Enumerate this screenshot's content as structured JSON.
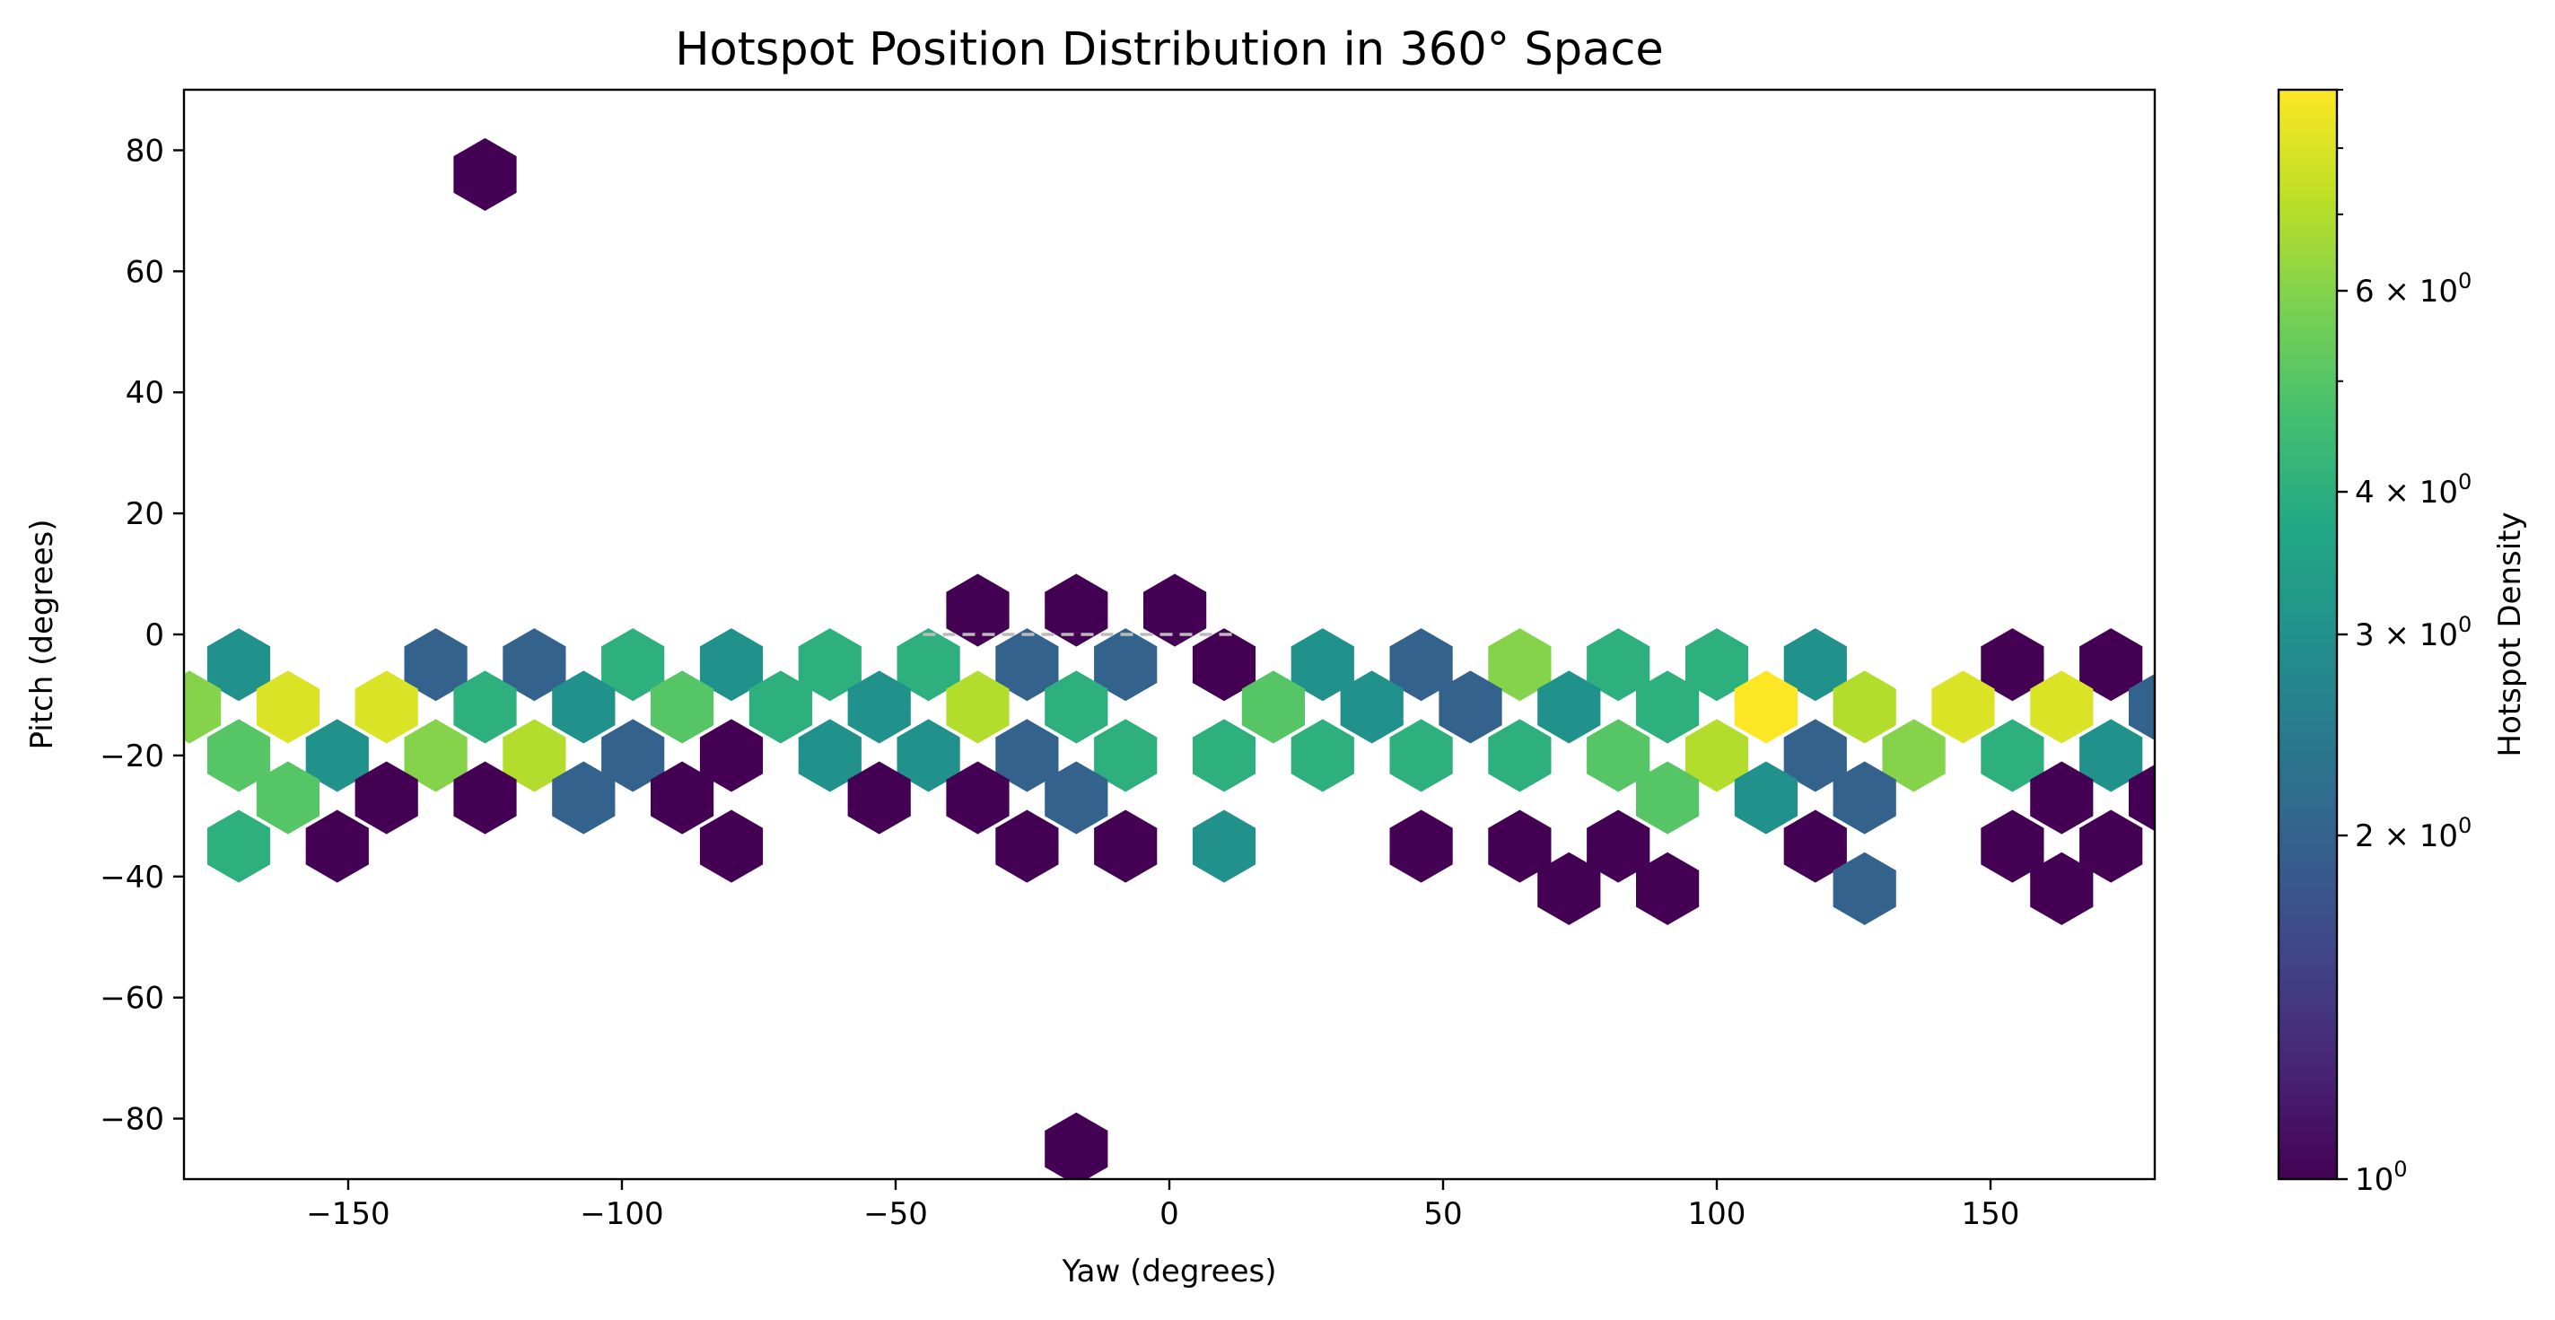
{
  "chart_data": {
    "type": "hexbin",
    "title": "Hotspot Position Distribution in 360° Space",
    "xlabel": "Yaw (degrees)",
    "ylabel": "Pitch (degrees)",
    "xlim": [
      -180,
      180
    ],
    "ylim": [
      -90,
      90
    ],
    "xticks": [
      -150,
      -100,
      -50,
      0,
      50,
      100,
      150
    ],
    "xtick_labels": [
      "−150",
      "−100",
      "−50",
      "0",
      "50",
      "100",
      "150"
    ],
    "yticks": [
      80,
      60,
      40,
      20,
      0,
      -20,
      -40,
      -60,
      -80
    ],
    "ytick_labels": [
      "80",
      "60",
      "40",
      "20",
      "0",
      "−20",
      "−40",
      "−60",
      "−80"
    ],
    "grid": false,
    "colorbar": {
      "label": "Hotspot Density",
      "scale": "log",
      "colormap": "viridis",
      "range": [
        1,
        9
      ],
      "ticks": [
        {
          "value": 1,
          "base": "10",
          "exp": "0",
          "prefix": ""
        },
        {
          "value": 2,
          "base": "10",
          "exp": "0",
          "prefix": "2 × "
        },
        {
          "value": 3,
          "base": "10",
          "exp": "0",
          "prefix": "3 × "
        },
        {
          "value": 4,
          "base": "10",
          "exp": "0",
          "prefix": "4 × "
        },
        {
          "value": 6,
          "base": "10",
          "exp": "0",
          "prefix": "6 × "
        }
      ],
      "minor_ticks": [
        5,
        7,
        8,
        9
      ]
    },
    "reference_line": {
      "y": 0,
      "style": "dashed",
      "color": "#bbbbbb"
    },
    "cells": [
      {
        "x": -125,
        "y": 76,
        "v": 1
      },
      {
        "x": -35,
        "y": 4,
        "v": 1
      },
      {
        "x": -17,
        "y": 4,
        "v": 1
      },
      {
        "x": 1,
        "y": 4,
        "v": 1
      },
      {
        "x": -170,
        "y": -5,
        "v": 3
      },
      {
        "x": -134,
        "y": -5,
        "v": 2
      },
      {
        "x": -116,
        "y": -5,
        "v": 2
      },
      {
        "x": -98,
        "y": -5,
        "v": 4
      },
      {
        "x": -80,
        "y": -5,
        "v": 3
      },
      {
        "x": -62,
        "y": -5,
        "v": 4
      },
      {
        "x": -44,
        "y": -5,
        "v": 4
      },
      {
        "x": -26,
        "y": -5,
        "v": 2
      },
      {
        "x": -8,
        "y": -5,
        "v": 2
      },
      {
        "x": 10,
        "y": -5,
        "v": 1
      },
      {
        "x": 28,
        "y": -5,
        "v": 3
      },
      {
        "x": 46,
        "y": -5,
        "v": 2
      },
      {
        "x": 64,
        "y": -5,
        "v": 6
      },
      {
        "x": 82,
        "y": -5,
        "v": 4
      },
      {
        "x": 100,
        "y": -5,
        "v": 4
      },
      {
        "x": 118,
        "y": -5,
        "v": 3
      },
      {
        "x": 154,
        "y": -5,
        "v": 1
      },
      {
        "x": 172,
        "y": -5,
        "v": 1
      },
      {
        "x": -179,
        "y": -12,
        "v": 6
      },
      {
        "x": -161,
        "y": -12,
        "v": 8
      },
      {
        "x": -143,
        "y": -12,
        "v": 8
      },
      {
        "x": -125,
        "y": -12,
        "v": 4
      },
      {
        "x": -107,
        "y": -12,
        "v": 3
      },
      {
        "x": -89,
        "y": -12,
        "v": 5
      },
      {
        "x": -71,
        "y": -12,
        "v": 4
      },
      {
        "x": -53,
        "y": -12,
        "v": 3
      },
      {
        "x": -35,
        "y": -12,
        "v": 7
      },
      {
        "x": -17,
        "y": -12,
        "v": 4
      },
      {
        "x": 19,
        "y": -12,
        "v": 5
      },
      {
        "x": 37,
        "y": -12,
        "v": 3
      },
      {
        "x": 55,
        "y": -12,
        "v": 2
      },
      {
        "x": 73,
        "y": -12,
        "v": 3
      },
      {
        "x": 91,
        "y": -12,
        "v": 4
      },
      {
        "x": 109,
        "y": -12,
        "v": 9
      },
      {
        "x": 127,
        "y": -12,
        "v": 7
      },
      {
        "x": 145,
        "y": -12,
        "v": 8
      },
      {
        "x": 163,
        "y": -12,
        "v": 8
      },
      {
        "x": 181,
        "y": -12,
        "v": 2
      },
      {
        "x": -170,
        "y": -20,
        "v": 5
      },
      {
        "x": -152,
        "y": -20,
        "v": 3
      },
      {
        "x": -134,
        "y": -20,
        "v": 6
      },
      {
        "x": -116,
        "y": -20,
        "v": 7
      },
      {
        "x": -98,
        "y": -20,
        "v": 2
      },
      {
        "x": -80,
        "y": -20,
        "v": 1
      },
      {
        "x": -62,
        "y": -20,
        "v": 3
      },
      {
        "x": -44,
        "y": -20,
        "v": 3
      },
      {
        "x": -26,
        "y": -20,
        "v": 2
      },
      {
        "x": -8,
        "y": -20,
        "v": 4
      },
      {
        "x": 10,
        "y": -20,
        "v": 4
      },
      {
        "x": 28,
        "y": -20,
        "v": 4
      },
      {
        "x": 46,
        "y": -20,
        "v": 4
      },
      {
        "x": 64,
        "y": -20,
        "v": 4
      },
      {
        "x": 82,
        "y": -20,
        "v": 5
      },
      {
        "x": 100,
        "y": -20,
        "v": 7
      },
      {
        "x": 118,
        "y": -20,
        "v": 2
      },
      {
        "x": 136,
        "y": -20,
        "v": 6
      },
      {
        "x": 154,
        "y": -20,
        "v": 4
      },
      {
        "x": 172,
        "y": -20,
        "v": 3
      },
      {
        "x": -161,
        "y": -27,
        "v": 5
      },
      {
        "x": -143,
        "y": -27,
        "v": 1
      },
      {
        "x": -125,
        "y": -27,
        "v": 1
      },
      {
        "x": -107,
        "y": -27,
        "v": 2
      },
      {
        "x": -89,
        "y": -27,
        "v": 1
      },
      {
        "x": -53,
        "y": -27,
        "v": 1
      },
      {
        "x": -35,
        "y": -27,
        "v": 1
      },
      {
        "x": -17,
        "y": -27,
        "v": 2
      },
      {
        "x": 91,
        "y": -27,
        "v": 5
      },
      {
        "x": 109,
        "y": -27,
        "v": 3
      },
      {
        "x": 127,
        "y": -27,
        "v": 2
      },
      {
        "x": 163,
        "y": -27,
        "v": 1
      },
      {
        "x": 181,
        "y": -27,
        "v": 1
      },
      {
        "x": -170,
        "y": -35,
        "v": 4
      },
      {
        "x": -152,
        "y": -35,
        "v": 1
      },
      {
        "x": -80,
        "y": -35,
        "v": 1
      },
      {
        "x": -26,
        "y": -35,
        "v": 1
      },
      {
        "x": -8,
        "y": -35,
        "v": 1
      },
      {
        "x": 10,
        "y": -35,
        "v": 3
      },
      {
        "x": 46,
        "y": -35,
        "v": 1
      },
      {
        "x": 64,
        "y": -35,
        "v": 1
      },
      {
        "x": 82,
        "y": -35,
        "v": 1
      },
      {
        "x": 118,
        "y": -35,
        "v": 1
      },
      {
        "x": 154,
        "y": -35,
        "v": 1
      },
      {
        "x": 172,
        "y": -35,
        "v": 1
      },
      {
        "x": 73,
        "y": -42,
        "v": 1
      },
      {
        "x": 91,
        "y": -42,
        "v": 1
      },
      {
        "x": 127,
        "y": -42,
        "v": 2
      },
      {
        "x": 163,
        "y": -42,
        "v": 1
      },
      {
        "x": -17,
        "y": -85,
        "v": 1
      }
    ]
  }
}
